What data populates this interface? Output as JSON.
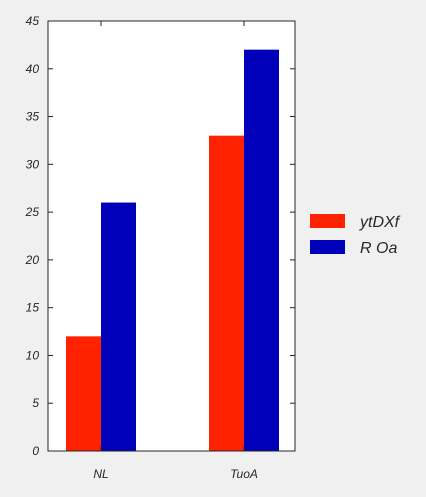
{
  "chart_data": {
    "type": "bar",
    "categories": [
      "NL",
      "TuoA"
    ],
    "series": [
      {
        "name": "ytDXf",
        "values": [
          12,
          33
        ],
        "color": "#ff2200"
      },
      {
        "name": "R Oa",
        "values": [
          26,
          42
        ],
        "color": "#0000bb"
      }
    ],
    "ylim": [
      0,
      45
    ],
    "yticks": [
      0,
      5,
      10,
      15,
      20,
      25,
      30,
      35,
      40,
      45
    ],
    "title": "",
    "xlabel": "",
    "ylabel": "",
    "grid": false,
    "legend_position": "right"
  }
}
